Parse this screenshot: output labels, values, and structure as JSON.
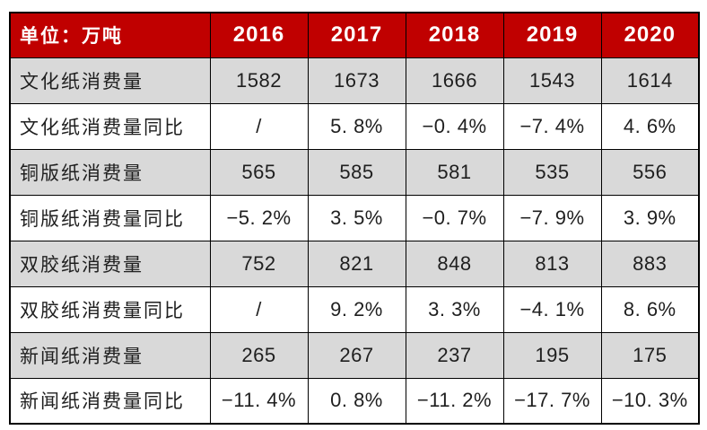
{
  "colors": {
    "header_bg": "#c00000",
    "header_text": "#ffffff",
    "shaded_row_bg": "#d9d9d9",
    "plain_row_bg": "#ffffff",
    "border": "#000000",
    "body_text": "#1f1f1f"
  },
  "table": {
    "unit_label": "单位：万吨",
    "years": [
      "2016",
      "2017",
      "2018",
      "2019",
      "2020"
    ],
    "rows": [
      {
        "label": "文化纸消费量",
        "cells": [
          "1582",
          "1673",
          "1666",
          "1543",
          "1614"
        ]
      },
      {
        "label": "文化纸消费量同比",
        "cells": [
          "/",
          "5. 8%",
          "−0. 4%",
          "−7. 4%",
          "4. 6%"
        ]
      },
      {
        "label": "铜版纸消费量",
        "cells": [
          "565",
          "585",
          "581",
          "535",
          "556"
        ]
      },
      {
        "label": "铜版纸消费量同比",
        "cells": [
          "−5. 2%",
          "3. 5%",
          "−0. 7%",
          "−7. 9%",
          "3. 9%"
        ]
      },
      {
        "label": "双胶纸消费量",
        "cells": [
          "752",
          "821",
          "848",
          "813",
          "883"
        ]
      },
      {
        "label": "双胶纸消费量同比",
        "cells": [
          "/",
          "9. 2%",
          "3. 3%",
          "−4. 1%",
          "8. 6%"
        ]
      },
      {
        "label": "新闻纸消费量",
        "cells": [
          "265",
          "267",
          "237",
          "195",
          "175"
        ]
      },
      {
        "label": "新闻纸消费量同比",
        "cells": [
          "−11. 4%",
          "0. 8%",
          "−11. 2%",
          "−17. 7%",
          "−10. 3%"
        ]
      }
    ]
  },
  "chart_data": {
    "type": "table",
    "title": "单位：万吨",
    "categories": [
      "2016",
      "2017",
      "2018",
      "2019",
      "2020"
    ],
    "series": [
      {
        "name": "文化纸消费量",
        "unit": "万吨",
        "values": [
          1582,
          1673,
          1666,
          1543,
          1614
        ]
      },
      {
        "name": "文化纸消费量同比",
        "unit": "%",
        "values": [
          null,
          5.8,
          -0.4,
          -7.4,
          4.6
        ]
      },
      {
        "name": "铜版纸消费量",
        "unit": "万吨",
        "values": [
          565,
          585,
          581,
          535,
          556
        ]
      },
      {
        "name": "铜版纸消费量同比",
        "unit": "%",
        "values": [
          -5.2,
          3.5,
          -0.7,
          -7.9,
          3.9
        ]
      },
      {
        "name": "双胶纸消费量",
        "unit": "万吨",
        "values": [
          752,
          821,
          848,
          813,
          883
        ]
      },
      {
        "name": "双胶纸消费量同比",
        "unit": "%",
        "values": [
          null,
          9.2,
          3.3,
          -4.1,
          8.6
        ]
      },
      {
        "name": "新闻纸消费量",
        "unit": "万吨",
        "values": [
          265,
          267,
          237,
          195,
          175
        ]
      },
      {
        "name": "新闻纸消费量同比",
        "unit": "%",
        "values": [
          -11.4,
          0.8,
          -11.2,
          -17.7,
          -10.3
        ]
      }
    ],
    "layout": {
      "header_style": "red-band-white-text",
      "row_shading": "quantity rows shaded gray, yoy rows white",
      "missing_value_symbol": "/"
    }
  }
}
